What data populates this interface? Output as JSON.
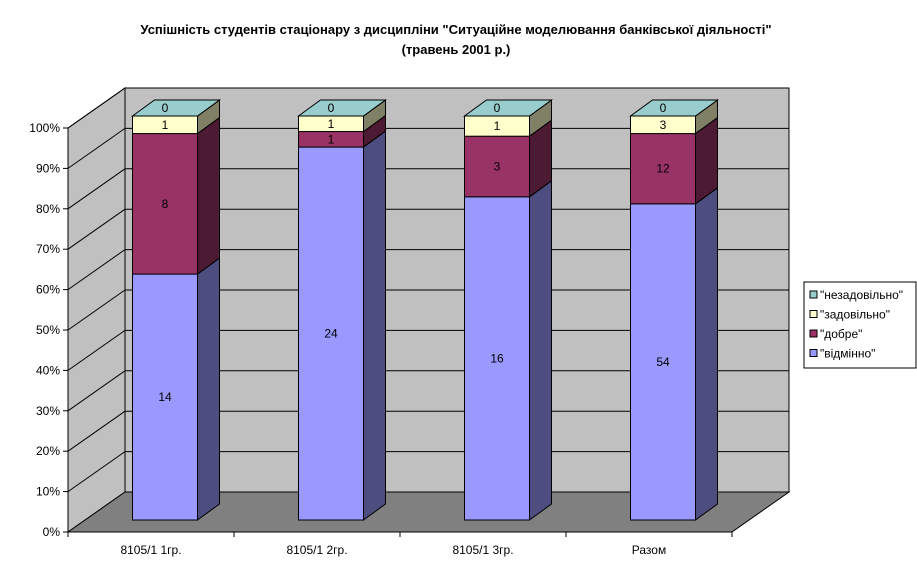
{
  "chart_data": {
    "type": "bar",
    "stacked": true,
    "percent_stacked": true,
    "three_d": true,
    "title": "Успішність студентів стаціонару з дисципліни \"Ситуаційне моделювання банківської діяльності\"",
    "subtitle": "(травень 2001 р.)",
    "categories": [
      "8105/1 1гр.",
      "8105/1 2гр.",
      "8105/1 3гр.",
      "Разом"
    ],
    "series": [
      {
        "name": "\"відмінно\"",
        "values": [
          14,
          24,
          16,
          54
        ],
        "color": "#9999ff"
      },
      {
        "name": "\"добре\"",
        "values": [
          8,
          1,
          3,
          12
        ],
        "color": "#993366"
      },
      {
        "name": "\"задовільно\"",
        "values": [
          1,
          1,
          1,
          3
        ],
        "color": "#ffffcc"
      },
      {
        "name": "\"незадовільно\"",
        "values": [
          0,
          0,
          0,
          0
        ],
        "color": "#99cccc"
      }
    ],
    "yticks": [
      "0%",
      "10%",
      "20%",
      "30%",
      "40%",
      "50%",
      "60%",
      "70%",
      "80%",
      "90%",
      "100%"
    ],
    "ylim": [
      0,
      100
    ],
    "grid": true,
    "legend_position": "right",
    "wall_color": "#c0c0c0",
    "floor_color": "#808080"
  }
}
